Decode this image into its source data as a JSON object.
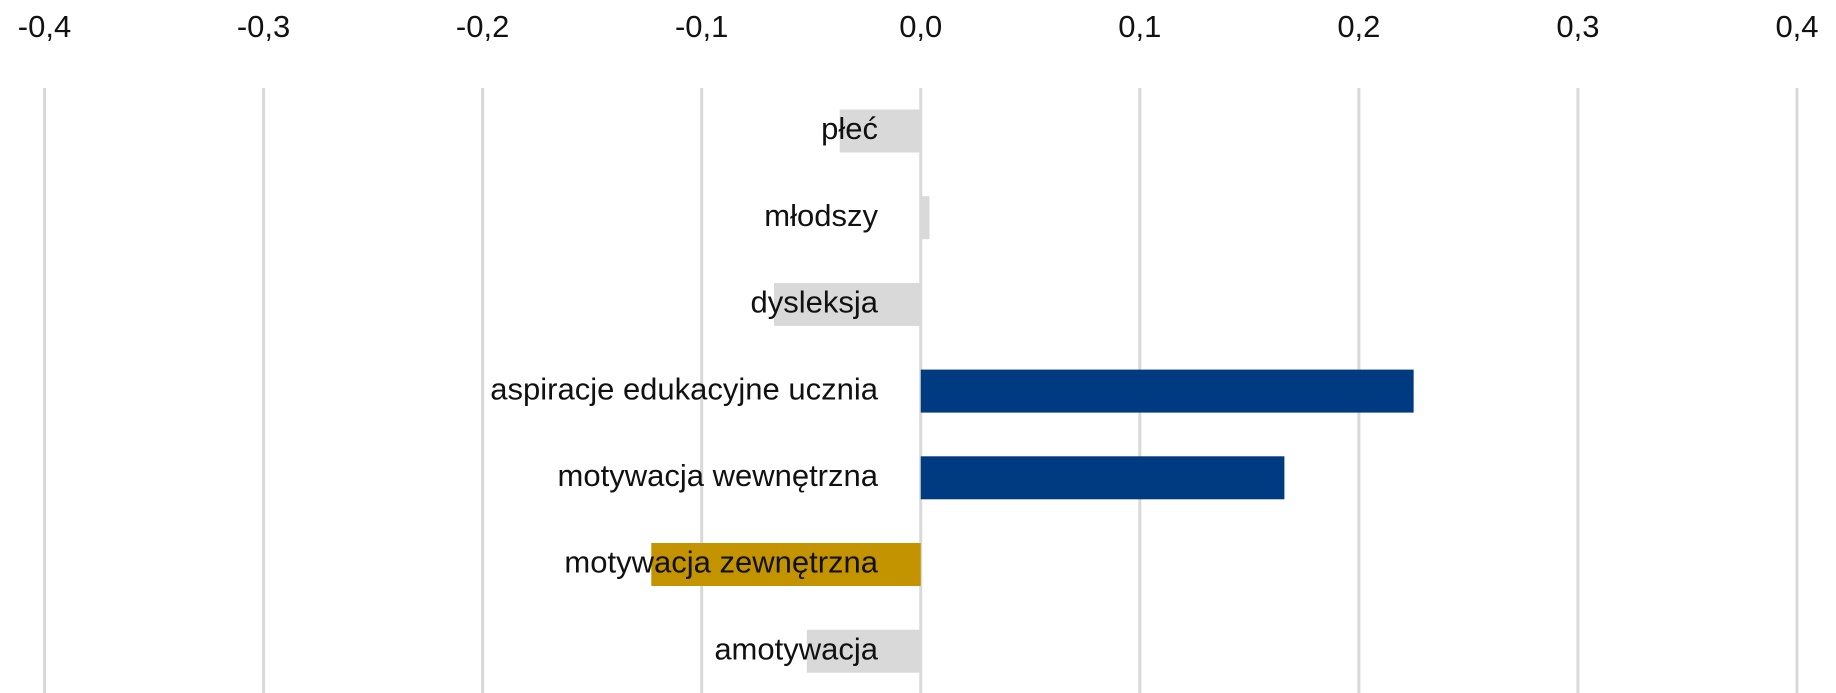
{
  "chart_data": {
    "type": "hbar",
    "categories": [
      "płeć",
      "młodszy",
      "dysleksja",
      "aspiracje edukacyjne ucznia",
      "motywacja wewnętrzna",
      "motywacja zewnętrzna",
      "amotywacja"
    ],
    "values": [
      -0.037,
      0.004,
      -0.067,
      0.225,
      0.166,
      -0.123,
      -0.052
    ],
    "colors": [
      "#d9d9d9",
      "#d9d9d9",
      "#d9d9d9",
      "#003a80",
      "#003a80",
      "#c49400",
      "#d9d9d9"
    ],
    "xlim": [
      -0.4,
      0.4
    ],
    "xticks": [
      {
        "value": -0.4,
        "label": "-0,4"
      },
      {
        "value": -0.3,
        "label": "-0,3"
      },
      {
        "value": -0.2,
        "label": "-0,2"
      },
      {
        "value": -0.1,
        "label": "-0,1"
      },
      {
        "value": 0,
        "label": "0,0"
      },
      {
        "value": 0.1,
        "label": "0,1"
      },
      {
        "value": 0.2,
        "label": "0,2"
      },
      {
        "value": 0.3,
        "label": "0,3"
      },
      {
        "value": 0.4,
        "label": "0,4"
      }
    ],
    "grid": true
  }
}
